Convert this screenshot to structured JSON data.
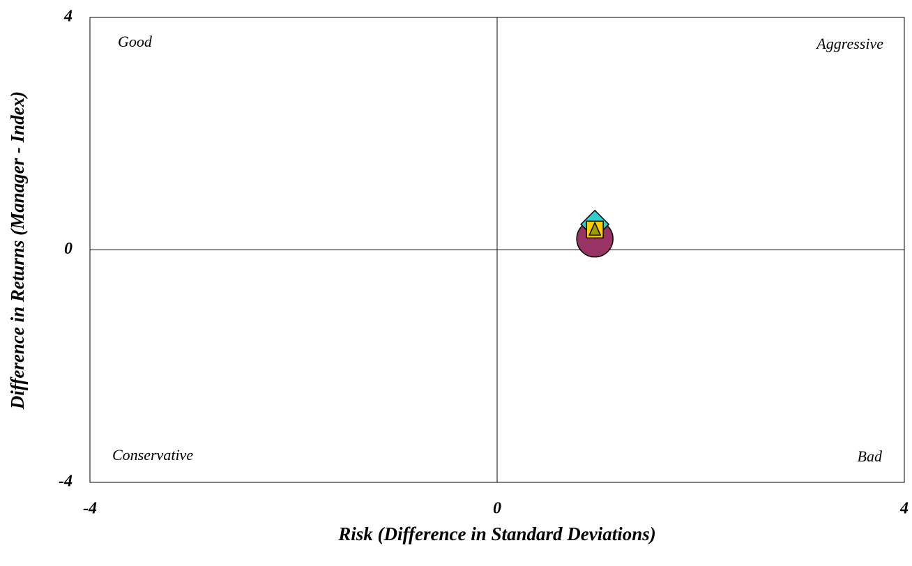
{
  "chart_data": {
    "type": "scatter",
    "x_label": "Risk (Difference in Standard Deviations)",
    "y_label": "Difference in Returns (Manager - Index)",
    "xlim": [
      -4,
      4
    ],
    "xticks": [
      -4,
      0,
      4
    ],
    "ylim": [
      -4,
      4
    ],
    "yticks": [
      -4,
      0,
      4
    ],
    "zero_lines": true,
    "annotations": [
      {
        "text": "Good",
        "corner": "top-left"
      },
      {
        "text": "Aggressive",
        "corner": "top-right"
      },
      {
        "text": "Conservative",
        "corner": "bottom-left"
      },
      {
        "text": "Bad",
        "corner": "bottom-right"
      }
    ],
    "series": [
      {
        "marker": "circle",
        "color": "#993366",
        "x": [
          0.96
        ],
        "values": [
          0.19
        ]
      },
      {
        "marker": "diamond",
        "color": "#33cccc",
        "x": [
          0.96
        ],
        "values": [
          0.44
        ]
      },
      {
        "marker": "square",
        "color": "#ffcc00",
        "x": [
          0.96
        ],
        "values": [
          0.35
        ]
      },
      {
        "marker": "triangle",
        "color": "#999900",
        "x": [
          0.96
        ],
        "values": [
          0.35
        ]
      }
    ]
  }
}
